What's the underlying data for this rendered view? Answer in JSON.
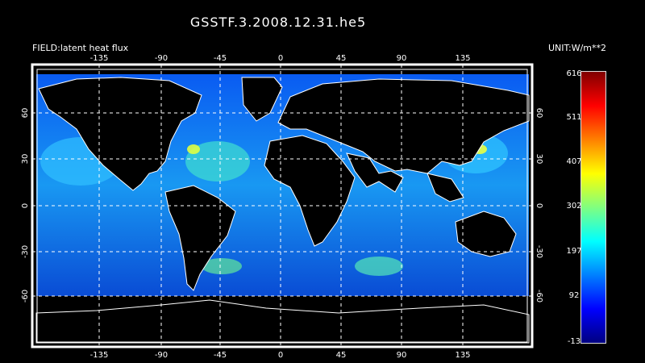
{
  "title": "GSSTF.3.2008.12.31.he5",
  "field_label": "FIELD:latent heat flux",
  "unit_label": "UNIT:W/m**2",
  "map": {
    "projection": "cylindrical equidistant",
    "lon_ticks": [
      "-135",
      "-90",
      "-45",
      "0",
      "45",
      "90",
      "135"
    ],
    "lat_ticks": [
      "60",
      "30",
      "0",
      "-30",
      "-60"
    ],
    "lon_range": [
      -180,
      180
    ],
    "lat_range": [
      -90,
      90
    ],
    "gridlines": true
  },
  "colorbar": {
    "labels": [
      "616",
      "511",
      "407",
      "302",
      "197",
      "92",
      "-13"
    ],
    "min": -13,
    "max": 616,
    "colors": [
      "#000080",
      "#0000ff",
      "#0080ff",
      "#00ffff",
      "#80ff80",
      "#ffff00",
      "#ff8000",
      "#ff0000",
      "#800000"
    ]
  }
}
